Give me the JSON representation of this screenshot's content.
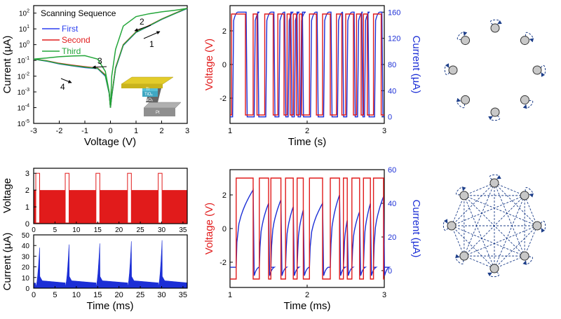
{
  "figure": {
    "panel_iv": {
      "y_label": "Current (µA)",
      "x_label": "Voltage (V)",
      "x_ticks": [
        "-3",
        "-2",
        "-1",
        "0",
        "1",
        "2",
        "3"
      ],
      "y_ticks": [
        {
          "base": "10",
          "exp": "2"
        },
        {
          "base": "10",
          "exp": "1"
        },
        {
          "base": "10",
          "exp": "0"
        },
        {
          "base": "10",
          "exp": "-1"
        },
        {
          "base": "10",
          "exp": "-2"
        },
        {
          "base": "10",
          "exp": "-3"
        },
        {
          "base": "10",
          "exp": "-4"
        },
        {
          "base": "10",
          "exp": "-5"
        }
      ],
      "legend_title": "Scanning Sequence",
      "legend": [
        "First",
        "Second",
        "Third"
      ],
      "sweep_labels": [
        "1",
        "2",
        "3",
        "4"
      ],
      "inset_layers": [
        "Ti",
        "TiOₓ",
        "TaOₓ",
        "Pt"
      ]
    },
    "panel_seq_top": {
      "y_left_label": "Voltage (V)",
      "y_right_label": "Current (µA)",
      "x_label": "Time (s)",
      "x_ticks": [
        "1",
        "2",
        "3"
      ],
      "y_left_ticks": [
        "2",
        "0",
        "-2"
      ],
      "y_right_ticks": [
        "160",
        "120",
        "80",
        "40",
        "0"
      ]
    },
    "panel_voltage_ms": {
      "y_label": "Voltage",
      "y_ticks": [
        "3",
        "2",
        "1",
        "0"
      ]
    },
    "panel_current_ms": {
      "y_label": "Current (µA)",
      "x_label": "Time (ms)",
      "x_ticks": [
        "0",
        "5",
        "10",
        "15",
        "20",
        "25",
        "30",
        "35"
      ],
      "y_ticks": [
        "50",
        "40",
        "30",
        "20",
        "10",
        "0"
      ]
    },
    "panel_seq_bottom": {
      "y_left_label": "Voltage (V)",
      "y_right_label": "Current (µA)",
      "x_label": "Time (ms)",
      "x_ticks": [
        "1",
        "2",
        "3"
      ],
      "y_left_ticks": [
        "2",
        "0",
        "-2"
      ],
      "y_right_ticks": [
        "60",
        "40",
        "20",
        "0"
      ]
    },
    "colors": {
      "voltage": "#e11b1b",
      "current": "#1c2fd6",
      "first": "#2b3ff0",
      "second": "#e11b1b",
      "third": "#24a63a",
      "axis": "#000000",
      "node_fill": "#c8c8c8",
      "graph_edge": "#1e3f8a"
    },
    "graph_top": {
      "nodes": 8,
      "self_loops": true,
      "edges": "none"
    },
    "graph_bottom": {
      "nodes": 8,
      "self_loops": true,
      "edges": "all-to-all"
    }
  },
  "chart_data": [
    {
      "type": "line",
      "panel": "I-V",
      "title": "",
      "xlabel": "Voltage (V)",
      "ylabel": "Current (µA)",
      "xlim": [
        -3,
        3
      ],
      "ylim": [
        1e-05,
        300
      ],
      "log_y": true,
      "series": [
        {
          "name": "First",
          "x": [
            -3,
            -2.5,
            -2,
            -1.5,
            -1,
            -0.5,
            -0.2,
            -0.05,
            0,
            0.05,
            0.2,
            0.5,
            1,
            1.5,
            2,
            2.5,
            3
          ],
          "y": [
            0.12,
            0.09,
            0.06,
            0.045,
            0.035,
            0.03,
            0.01,
            0.0008,
            0.0001,
            0.0005,
            0.03,
            0.9,
            6,
            15,
            40,
            90,
            200
          ]
        },
        {
          "name": "Second",
          "x": [
            -3,
            -2.5,
            -2,
            -1.5,
            -1,
            -0.5,
            -0.2,
            -0.05,
            0,
            0.05,
            0.2,
            0.5,
            1,
            1.5,
            2,
            2.5,
            3
          ],
          "y": [
            0.12,
            0.095,
            0.065,
            0.05,
            0.04,
            0.032,
            0.012,
            0.0009,
            0.0001,
            0.0006,
            0.035,
            1.0,
            6.5,
            16,
            42,
            95,
            210
          ]
        },
        {
          "name": "Third",
          "x": [
            -3,
            -2.5,
            -2,
            -1.5,
            -1,
            -0.5,
            -0.2,
            -0.05,
            0,
            0.05,
            0.2,
            0.5,
            1,
            1.5,
            2,
            2.5,
            3
          ],
          "y": [
            0.12,
            0.092,
            0.062,
            0.047,
            0.037,
            0.031,
            0.011,
            0.00085,
            0.0001,
            0.00055,
            0.032,
            0.95,
            6.2,
            15.5,
            41,
            92,
            205
          ]
        },
        {
          "name": "",
          "role": "return sweep",
          "x": [
            3,
            2.5,
            2,
            1.5,
            1,
            0.5,
            0.2,
            0.05,
            0,
            -0.05,
            -0.2,
            -0.5,
            -1,
            -1.5,
            -2,
            -2.5,
            -3
          ],
          "y": [
            200,
            150,
            120,
            90,
            60,
            15,
            0.5,
            0.01,
            0.0001,
            0.001,
            0.02,
            0.12,
            0.2,
            0.19,
            0.17,
            0.14,
            0.12
          ]
        }
      ]
    },
    {
      "type": "line",
      "panel": "top pulse sequence",
      "xlabel": "Time (s)",
      "y_left_label": "Voltage (V)",
      "y_right_label": "Current (µA)",
      "xlim": [
        1,
        3
      ],
      "ylim_left": [
        -3.5,
        3.5
      ],
      "ylim_right": [
        -10,
        170
      ],
      "pulses_s": [
        [
          1.02,
          1.2
        ],
        [
          1.3,
          1.35
        ],
        [
          1.45,
          1.56
        ],
        [
          1.62,
          1.7
        ],
        [
          1.74,
          1.78
        ],
        [
          1.82,
          1.86
        ],
        [
          1.9,
          1.93
        ],
        [
          2.03,
          2.12
        ],
        [
          2.2,
          2.3
        ],
        [
          2.38,
          2.45
        ],
        [
          2.5,
          2.6
        ],
        [
          2.64,
          2.7
        ],
        [
          2.73,
          2.78
        ],
        [
          2.86,
          2.96
        ]
      ],
      "v_high": 3,
      "v_low": -3,
      "i_high": 160,
      "i_low": 0
    },
    {
      "type": "line",
      "panel": "voltage vs time (ms)",
      "ylabel": "Voltage",
      "xlim": [
        0,
        36
      ],
      "ylim": [
        0,
        3.3
      ],
      "v_baseline": 2,
      "v_pulse": 3,
      "pulse_starts_ms": [
        0.5,
        7.4,
        14.6,
        22.0,
        29.2
      ],
      "pulse_width_ms": 0.9
    },
    {
      "type": "area",
      "panel": "current vs time (ms)",
      "xlabel": "Time (ms)",
      "ylabel": "Current (µA)",
      "xlim": [
        0,
        36
      ],
      "ylim": [
        0,
        50
      ],
      "peaks_ua": [
        38,
        41,
        42,
        44,
        45
      ],
      "baseline_ua": [
        5,
        5,
        5,
        5,
        5
      ]
    },
    {
      "type": "line",
      "panel": "bottom pulse sequence",
      "xlabel": "Time (ms)",
      "y_left_label": "Voltage (V)",
      "y_right_label": "Current (µA)",
      "xlim": [
        1,
        3
      ],
      "ylim_left": [
        -3.5,
        3.5
      ],
      "ylim_right": [
        -10,
        60
      ],
      "pulses_ms": [
        [
          1.08,
          1.3
        ],
        [
          1.38,
          1.5
        ],
        [
          1.53,
          1.66
        ],
        [
          1.72,
          1.82
        ],
        [
          1.87,
          1.95
        ],
        [
          2.03,
          2.2
        ],
        [
          2.3,
          2.42
        ],
        [
          2.47,
          2.52
        ],
        [
          2.58,
          2.68
        ],
        [
          2.73,
          2.82
        ],
        [
          2.86,
          2.99
        ]
      ],
      "v_high": 3,
      "v_low": -3,
      "i_peak": [
        48,
        40,
        42,
        38,
        36,
        40,
        45,
        30,
        35,
        40,
        44
      ],
      "i_low": 0
    }
  ]
}
